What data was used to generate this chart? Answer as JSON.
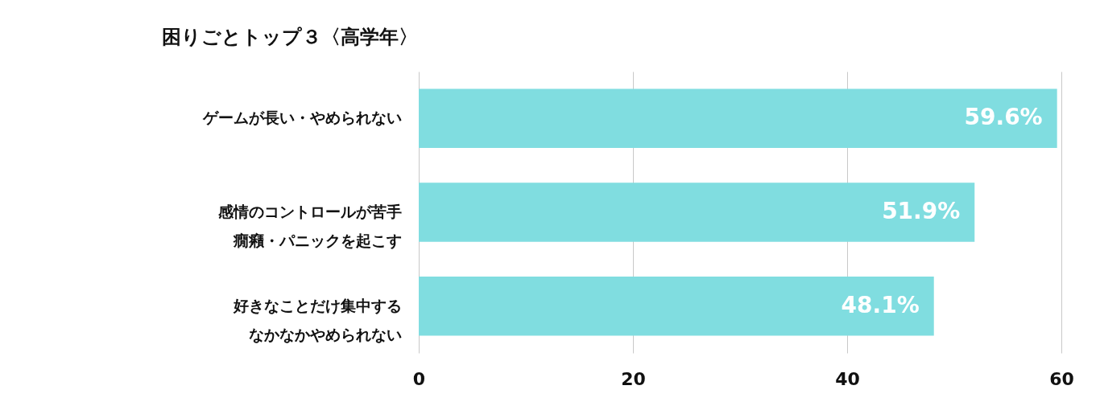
{
  "chart_data": {
    "type": "bar",
    "orientation": "horizontal",
    "title": "困りごとトップ３〈高学年〉",
    "categories": [
      "ゲームが長い・やめられない",
      "感情のコントロールが苦手癇癪・パニックを起こす",
      "好きなことだけ集中するなかなかやめられない"
    ],
    "values": [
      59.6,
      51.9,
      48.1
    ],
    "color": "#80dde0",
    "value_labels": [
      "59.6%",
      "51.9%",
      "48.1%"
    ],
    "xlim": [
      0,
      60
    ],
    "xticks": [
      0,
      20,
      40,
      60
    ],
    "grid": "x"
  }
}
